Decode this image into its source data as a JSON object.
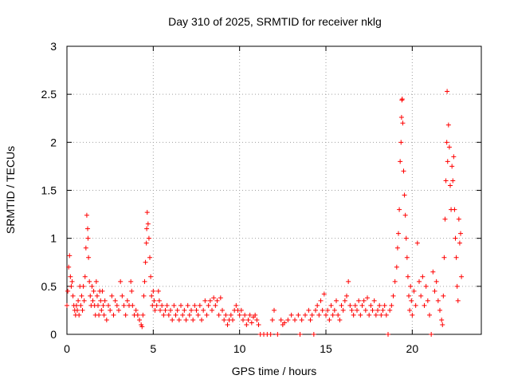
{
  "chart_data": {
    "type": "scatter",
    "title": "Day 310 of 2025, SRMTID for receiver nklg",
    "xlabel": "GPS time / hours",
    "ylabel": "SRMTID / TECUs",
    "xlim": [
      0,
      24
    ],
    "ylim": [
      0,
      3
    ],
    "x_ticks": [
      0,
      5,
      10,
      15,
      20
    ],
    "y_ticks": [
      0,
      0.5,
      1,
      1.5,
      2,
      2.5,
      3
    ],
    "x_tick_labels": [
      "0",
      "5",
      "10",
      "15",
      "20"
    ],
    "y_tick_labels": [
      "0",
      "0.5",
      "1",
      "1.5",
      "2",
      "2.5",
      "3"
    ],
    "grid": true,
    "marker": "plus",
    "series": [
      {
        "name": "nklg",
        "color": "#ff0000",
        "points": [
          [
            0.0,
            0.3
          ],
          [
            0.05,
            0.45
          ],
          [
            0.1,
            0.7
          ],
          [
            0.15,
            0.82
          ],
          [
            0.2,
            0.6
          ],
          [
            0.25,
            0.5
          ],
          [
            0.3,
            0.55
          ],
          [
            0.35,
            0.4
          ],
          [
            0.4,
            0.3
          ],
          [
            0.45,
            0.25
          ],
          [
            0.5,
            0.2
          ],
          [
            0.55,
            0.3
          ],
          [
            0.6,
            0.25
          ],
          [
            0.65,
            0.35
          ],
          [
            0.7,
            0.2
          ],
          [
            0.75,
            0.5
          ],
          [
            0.8,
            0.3
          ],
          [
            0.85,
            0.4
          ],
          [
            0.9,
            0.25
          ],
          [
            0.95,
            0.5
          ],
          [
            1.0,
            0.35
          ],
          [
            1.05,
            0.6
          ],
          [
            1.1,
            0.9
          ],
          [
            1.15,
            1.24
          ],
          [
            1.2,
            1.1
          ],
          [
            1.22,
            1.0
          ],
          [
            1.25,
            0.8
          ],
          [
            1.3,
            0.55
          ],
          [
            1.35,
            0.4
          ],
          [
            1.4,
            0.3
          ],
          [
            1.45,
            0.5
          ],
          [
            1.5,
            0.35
          ],
          [
            1.55,
            0.45
          ],
          [
            1.6,
            0.3
          ],
          [
            1.65,
            0.2
          ],
          [
            1.7,
            0.55
          ],
          [
            1.75,
            0.4
          ],
          [
            1.8,
            0.3
          ],
          [
            1.85,
            0.2
          ],
          [
            1.9,
            0.45
          ],
          [
            1.95,
            0.35
          ],
          [
            2.0,
            0.25
          ],
          [
            2.05,
            0.45
          ],
          [
            2.1,
            0.3
          ],
          [
            2.15,
            0.2
          ],
          [
            2.2,
            0.35
          ],
          [
            2.3,
            0.15
          ],
          [
            2.4,
            0.3
          ],
          [
            2.5,
            0.25
          ],
          [
            2.6,
            0.4
          ],
          [
            2.7,
            0.2
          ],
          [
            2.8,
            0.35
          ],
          [
            2.9,
            0.3
          ],
          [
            3.0,
            0.25
          ],
          [
            3.1,
            0.55
          ],
          [
            3.2,
            0.4
          ],
          [
            3.3,
            0.3
          ],
          [
            3.4,
            0.2
          ],
          [
            3.5,
            0.35
          ],
          [
            3.6,
            0.3
          ],
          [
            3.7,
            0.55
          ],
          [
            3.75,
            0.45
          ],
          [
            3.8,
            0.3
          ],
          [
            3.9,
            0.2
          ],
          [
            4.0,
            0.25
          ],
          [
            4.1,
            0.2
          ],
          [
            4.2,
            0.15
          ],
          [
            4.3,
            0.1
          ],
          [
            4.35,
            0.08
          ],
          [
            4.4,
            0.2
          ],
          [
            4.45,
            0.4
          ],
          [
            4.5,
            0.55
          ],
          [
            4.55,
            0.75
          ],
          [
            4.6,
            0.95
          ],
          [
            4.62,
            1.1
          ],
          [
            4.65,
            1.27
          ],
          [
            4.7,
            1.15
          ],
          [
            4.75,
            1.0
          ],
          [
            4.8,
            0.8
          ],
          [
            4.85,
            0.6
          ],
          [
            4.9,
            0.4
          ],
          [
            4.95,
            0.3
          ],
          [
            5.0,
            0.45
          ],
          [
            5.05,
            0.35
          ],
          [
            5.1,
            0.25
          ],
          [
            5.2,
            0.3
          ],
          [
            5.3,
            0.45
          ],
          [
            5.35,
            0.35
          ],
          [
            5.4,
            0.25
          ],
          [
            5.5,
            0.3
          ],
          [
            5.6,
            0.2
          ],
          [
            5.7,
            0.25
          ],
          [
            5.8,
            0.3
          ],
          [
            5.9,
            0.2
          ],
          [
            6.0,
            0.25
          ],
          [
            6.1,
            0.15
          ],
          [
            6.2,
            0.3
          ],
          [
            6.3,
            0.2
          ],
          [
            6.4,
            0.25
          ],
          [
            6.5,
            0.15
          ],
          [
            6.6,
            0.3
          ],
          [
            6.7,
            0.2
          ],
          [
            6.8,
            0.25
          ],
          [
            6.9,
            0.15
          ],
          [
            7.0,
            0.3
          ],
          [
            7.1,
            0.2
          ],
          [
            7.2,
            0.25
          ],
          [
            7.3,
            0.15
          ],
          [
            7.4,
            0.3
          ],
          [
            7.5,
            0.25
          ],
          [
            7.6,
            0.2
          ],
          [
            7.7,
            0.3
          ],
          [
            7.8,
            0.15
          ],
          [
            7.9,
            0.25
          ],
          [
            8.0,
            0.35
          ],
          [
            8.1,
            0.2
          ],
          [
            8.2,
            0.3
          ],
          [
            8.3,
            0.35
          ],
          [
            8.4,
            0.25
          ],
          [
            8.5,
            0.38
          ],
          [
            8.6,
            0.3
          ],
          [
            8.7,
            0.35
          ],
          [
            8.8,
            0.2
          ],
          [
            8.9,
            0.38
          ],
          [
            9.0,
            0.25
          ],
          [
            9.1,
            0.15
          ],
          [
            9.2,
            0.2
          ],
          [
            9.3,
            0.1
          ],
          [
            9.4,
            0.15
          ],
          [
            9.5,
            0.2
          ],
          [
            9.6,
            0.15
          ],
          [
            9.7,
            0.25
          ],
          [
            9.8,
            0.3
          ],
          [
            9.9,
            0.25
          ],
          [
            10.0,
            0.2
          ],
          [
            10.1,
            0.25
          ],
          [
            10.2,
            0.15
          ],
          [
            10.3,
            0.2
          ],
          [
            10.4,
            0.1
          ],
          [
            10.5,
            0.15
          ],
          [
            10.6,
            0.2
          ],
          [
            10.7,
            0.12
          ],
          [
            10.8,
            0.18
          ],
          [
            10.9,
            0.2
          ],
          [
            11.0,
            0.15
          ],
          [
            11.1,
            0.1
          ],
          [
            11.2,
            0.0
          ],
          [
            11.4,
            0.0
          ],
          [
            11.6,
            0.0
          ],
          [
            11.8,
            0.0
          ],
          [
            11.9,
            0.15
          ],
          [
            12.0,
            0.25
          ],
          [
            12.2,
            0.0
          ],
          [
            12.4,
            0.15
          ],
          [
            12.5,
            0.1
          ],
          [
            12.6,
            0.12
          ],
          [
            12.8,
            0.15
          ],
          [
            13.0,
            0.2
          ],
          [
            13.2,
            0.15
          ],
          [
            13.4,
            0.2
          ],
          [
            13.5,
            0.0
          ],
          [
            13.6,
            0.15
          ],
          [
            13.8,
            0.2
          ],
          [
            14.0,
            0.25
          ],
          [
            14.1,
            0.15
          ],
          [
            14.2,
            0.2
          ],
          [
            14.3,
            0.0
          ],
          [
            14.4,
            0.25
          ],
          [
            14.5,
            0.3
          ],
          [
            14.6,
            0.2
          ],
          [
            14.7,
            0.35
          ],
          [
            14.8,
            0.25
          ],
          [
            14.9,
            0.42
          ],
          [
            15.0,
            0.2
          ],
          [
            15.1,
            0.25
          ],
          [
            15.2,
            0.15
          ],
          [
            15.3,
            0.3
          ],
          [
            15.4,
            0.2
          ],
          [
            15.5,
            0.25
          ],
          [
            15.6,
            0.35
          ],
          [
            15.7,
            0.2
          ],
          [
            15.8,
            0.15
          ],
          [
            15.9,
            0.3
          ],
          [
            16.0,
            0.25
          ],
          [
            16.1,
            0.35
          ],
          [
            16.2,
            0.4
          ],
          [
            16.3,
            0.55
          ],
          [
            16.4,
            0.3
          ],
          [
            16.5,
            0.25
          ],
          [
            16.6,
            0.2
          ],
          [
            16.7,
            0.3
          ],
          [
            16.8,
            0.25
          ],
          [
            16.9,
            0.35
          ],
          [
            17.0,
            0.2
          ],
          [
            17.1,
            0.3
          ],
          [
            17.2,
            0.35
          ],
          [
            17.3,
            0.25
          ],
          [
            17.4,
            0.38
          ],
          [
            17.5,
            0.2
          ],
          [
            17.6,
            0.3
          ],
          [
            17.7,
            0.25
          ],
          [
            17.8,
            0.35
          ],
          [
            17.9,
            0.2
          ],
          [
            18.0,
            0.25
          ],
          [
            18.1,
            0.3
          ],
          [
            18.2,
            0.2
          ],
          [
            18.3,
            0.25
          ],
          [
            18.4,
            0.3
          ],
          [
            18.5,
            0.2
          ],
          [
            18.6,
            0.0
          ],
          [
            18.7,
            0.25
          ],
          [
            18.8,
            0.3
          ],
          [
            18.9,
            0.4
          ],
          [
            19.0,
            0.55
          ],
          [
            19.1,
            0.7
          ],
          [
            19.15,
            0.9
          ],
          [
            19.2,
            1.05
          ],
          [
            19.25,
            1.3
          ],
          [
            19.3,
            1.8
          ],
          [
            19.35,
            2.0
          ],
          [
            19.38,
            2.26
          ],
          [
            19.4,
            2.44
          ],
          [
            19.42,
            2.45
          ],
          [
            19.45,
            2.2
          ],
          [
            19.5,
            1.7
          ],
          [
            19.55,
            1.45
          ],
          [
            19.6,
            1.24
          ],
          [
            19.65,
            1.0
          ],
          [
            19.7,
            0.8
          ],
          [
            19.75,
            0.6
          ],
          [
            19.8,
            0.4
          ],
          [
            19.85,
            0.25
          ],
          [
            19.9,
            0.5
          ],
          [
            19.95,
            0.35
          ],
          [
            20.0,
            0.2
          ],
          [
            20.1,
            0.45
          ],
          [
            20.2,
            0.3
          ],
          [
            20.3,
            0.95
          ],
          [
            20.4,
            0.55
          ],
          [
            20.5,
            0.4
          ],
          [
            20.6,
            0.6
          ],
          [
            20.7,
            0.3
          ],
          [
            20.8,
            0.5
          ],
          [
            20.9,
            0.35
          ],
          [
            21.0,
            0.2
          ],
          [
            21.1,
            0.0
          ],
          [
            21.2,
            0.65
          ],
          [
            21.3,
            0.45
          ],
          [
            21.4,
            0.55
          ],
          [
            21.5,
            0.35
          ],
          [
            21.6,
            0.25
          ],
          [
            21.7,
            0.15
          ],
          [
            21.75,
            0.1
          ],
          [
            21.8,
            0.4
          ],
          [
            21.85,
            0.8
          ],
          [
            21.9,
            1.2
          ],
          [
            21.95,
            1.6
          ],
          [
            22.0,
            2.0
          ],
          [
            22.02,
            2.53
          ],
          [
            22.05,
            1.8
          ],
          [
            22.1,
            2.18
          ],
          [
            22.15,
            1.95
          ],
          [
            22.2,
            1.55
          ],
          [
            22.25,
            1.3
          ],
          [
            22.3,
            1.75
          ],
          [
            22.35,
            1.6
          ],
          [
            22.4,
            1.85
          ],
          [
            22.45,
            1.3
          ],
          [
            22.5,
            1.0
          ],
          [
            22.55,
            0.8
          ],
          [
            22.6,
            0.5
          ],
          [
            22.65,
            0.35
          ],
          [
            22.7,
            1.2
          ],
          [
            22.75,
            0.95
          ],
          [
            22.8,
            1.05
          ],
          [
            22.85,
            0.6
          ]
        ]
      }
    ]
  }
}
